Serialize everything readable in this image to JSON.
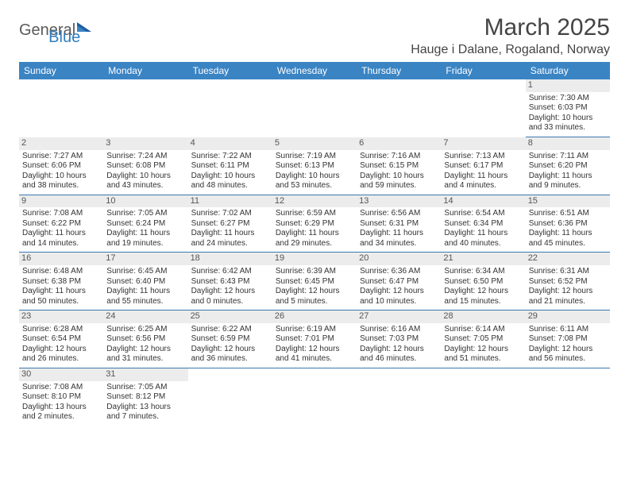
{
  "brand": {
    "part1": "General",
    "part2": "Blue"
  },
  "title": "March 2025",
  "location": "Hauge i Dalane, Rogaland, Norway",
  "colors": {
    "header_bg": "#3a84c4",
    "header_text": "#ffffff",
    "row_divider": "#3a78b0",
    "daynum_bg": "#ececec",
    "logo_blue": "#2f7ec0"
  },
  "weekdays": [
    "Sunday",
    "Monday",
    "Tuesday",
    "Wednesday",
    "Thursday",
    "Friday",
    "Saturday"
  ],
  "weeks": [
    [
      null,
      null,
      null,
      null,
      null,
      null,
      {
        "n": "1",
        "sunrise": "Sunrise: 7:30 AM",
        "sunset": "Sunset: 6:03 PM",
        "daylight": "Daylight: 10 hours and 33 minutes."
      }
    ],
    [
      {
        "n": "2",
        "sunrise": "Sunrise: 7:27 AM",
        "sunset": "Sunset: 6:06 PM",
        "daylight": "Daylight: 10 hours and 38 minutes."
      },
      {
        "n": "3",
        "sunrise": "Sunrise: 7:24 AM",
        "sunset": "Sunset: 6:08 PM",
        "daylight": "Daylight: 10 hours and 43 minutes."
      },
      {
        "n": "4",
        "sunrise": "Sunrise: 7:22 AM",
        "sunset": "Sunset: 6:11 PM",
        "daylight": "Daylight: 10 hours and 48 minutes."
      },
      {
        "n": "5",
        "sunrise": "Sunrise: 7:19 AM",
        "sunset": "Sunset: 6:13 PM",
        "daylight": "Daylight: 10 hours and 53 minutes."
      },
      {
        "n": "6",
        "sunrise": "Sunrise: 7:16 AM",
        "sunset": "Sunset: 6:15 PM",
        "daylight": "Daylight: 10 hours and 59 minutes."
      },
      {
        "n": "7",
        "sunrise": "Sunrise: 7:13 AM",
        "sunset": "Sunset: 6:17 PM",
        "daylight": "Daylight: 11 hours and 4 minutes."
      },
      {
        "n": "8",
        "sunrise": "Sunrise: 7:11 AM",
        "sunset": "Sunset: 6:20 PM",
        "daylight": "Daylight: 11 hours and 9 minutes."
      }
    ],
    [
      {
        "n": "9",
        "sunrise": "Sunrise: 7:08 AM",
        "sunset": "Sunset: 6:22 PM",
        "daylight": "Daylight: 11 hours and 14 minutes."
      },
      {
        "n": "10",
        "sunrise": "Sunrise: 7:05 AM",
        "sunset": "Sunset: 6:24 PM",
        "daylight": "Daylight: 11 hours and 19 minutes."
      },
      {
        "n": "11",
        "sunrise": "Sunrise: 7:02 AM",
        "sunset": "Sunset: 6:27 PM",
        "daylight": "Daylight: 11 hours and 24 minutes."
      },
      {
        "n": "12",
        "sunrise": "Sunrise: 6:59 AM",
        "sunset": "Sunset: 6:29 PM",
        "daylight": "Daylight: 11 hours and 29 minutes."
      },
      {
        "n": "13",
        "sunrise": "Sunrise: 6:56 AM",
        "sunset": "Sunset: 6:31 PM",
        "daylight": "Daylight: 11 hours and 34 minutes."
      },
      {
        "n": "14",
        "sunrise": "Sunrise: 6:54 AM",
        "sunset": "Sunset: 6:34 PM",
        "daylight": "Daylight: 11 hours and 40 minutes."
      },
      {
        "n": "15",
        "sunrise": "Sunrise: 6:51 AM",
        "sunset": "Sunset: 6:36 PM",
        "daylight": "Daylight: 11 hours and 45 minutes."
      }
    ],
    [
      {
        "n": "16",
        "sunrise": "Sunrise: 6:48 AM",
        "sunset": "Sunset: 6:38 PM",
        "daylight": "Daylight: 11 hours and 50 minutes."
      },
      {
        "n": "17",
        "sunrise": "Sunrise: 6:45 AM",
        "sunset": "Sunset: 6:40 PM",
        "daylight": "Daylight: 11 hours and 55 minutes."
      },
      {
        "n": "18",
        "sunrise": "Sunrise: 6:42 AM",
        "sunset": "Sunset: 6:43 PM",
        "daylight": "Daylight: 12 hours and 0 minutes."
      },
      {
        "n": "19",
        "sunrise": "Sunrise: 6:39 AM",
        "sunset": "Sunset: 6:45 PM",
        "daylight": "Daylight: 12 hours and 5 minutes."
      },
      {
        "n": "20",
        "sunrise": "Sunrise: 6:36 AM",
        "sunset": "Sunset: 6:47 PM",
        "daylight": "Daylight: 12 hours and 10 minutes."
      },
      {
        "n": "21",
        "sunrise": "Sunrise: 6:34 AM",
        "sunset": "Sunset: 6:50 PM",
        "daylight": "Daylight: 12 hours and 15 minutes."
      },
      {
        "n": "22",
        "sunrise": "Sunrise: 6:31 AM",
        "sunset": "Sunset: 6:52 PM",
        "daylight": "Daylight: 12 hours and 21 minutes."
      }
    ],
    [
      {
        "n": "23",
        "sunrise": "Sunrise: 6:28 AM",
        "sunset": "Sunset: 6:54 PM",
        "daylight": "Daylight: 12 hours and 26 minutes."
      },
      {
        "n": "24",
        "sunrise": "Sunrise: 6:25 AM",
        "sunset": "Sunset: 6:56 PM",
        "daylight": "Daylight: 12 hours and 31 minutes."
      },
      {
        "n": "25",
        "sunrise": "Sunrise: 6:22 AM",
        "sunset": "Sunset: 6:59 PM",
        "daylight": "Daylight: 12 hours and 36 minutes."
      },
      {
        "n": "26",
        "sunrise": "Sunrise: 6:19 AM",
        "sunset": "Sunset: 7:01 PM",
        "daylight": "Daylight: 12 hours and 41 minutes."
      },
      {
        "n": "27",
        "sunrise": "Sunrise: 6:16 AM",
        "sunset": "Sunset: 7:03 PM",
        "daylight": "Daylight: 12 hours and 46 minutes."
      },
      {
        "n": "28",
        "sunrise": "Sunrise: 6:14 AM",
        "sunset": "Sunset: 7:05 PM",
        "daylight": "Daylight: 12 hours and 51 minutes."
      },
      {
        "n": "29",
        "sunrise": "Sunrise: 6:11 AM",
        "sunset": "Sunset: 7:08 PM",
        "daylight": "Daylight: 12 hours and 56 minutes."
      }
    ],
    [
      {
        "n": "30",
        "sunrise": "Sunrise: 7:08 AM",
        "sunset": "Sunset: 8:10 PM",
        "daylight": "Daylight: 13 hours and 2 minutes."
      },
      {
        "n": "31",
        "sunrise": "Sunrise: 7:05 AM",
        "sunset": "Sunset: 8:12 PM",
        "daylight": "Daylight: 13 hours and 7 minutes."
      },
      null,
      null,
      null,
      null,
      null
    ]
  ]
}
